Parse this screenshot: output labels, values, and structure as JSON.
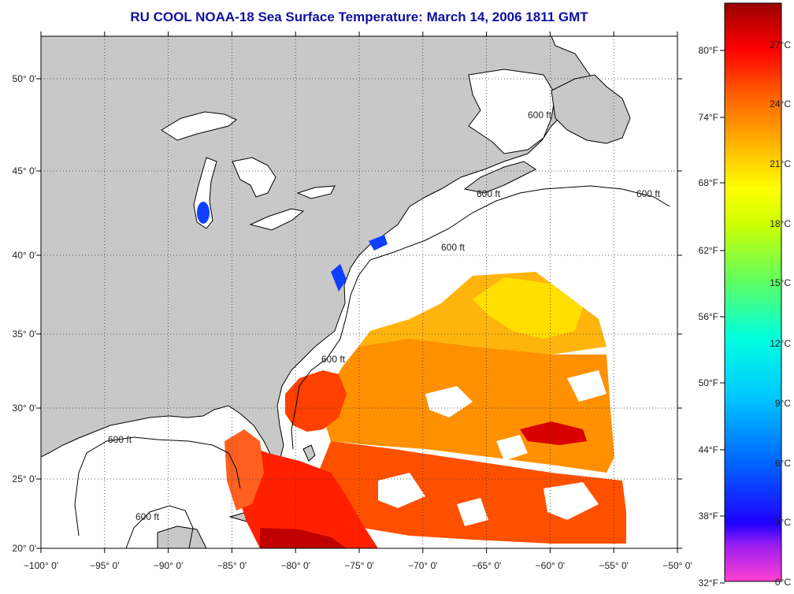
{
  "title": "RU COOL  NOAA-18  Sea Surface Temperature:  March 14, 2006 1811 GMT",
  "colors": {
    "title": "#1010a0",
    "land": "#c8c8c8",
    "ocean_no_data": "#ffffff",
    "coast": "#000000",
    "gridlines": "#333333"
  },
  "map": {
    "lon_range": [
      -100,
      -50
    ],
    "lat_range": [
      20,
      52.5
    ],
    "lon_ticks": [
      "−100° 0'",
      "−95° 0'",
      "−90° 0'",
      "−85° 0'",
      "−80° 0'",
      "−75° 0'",
      "−70° 0'",
      "−65° 0'",
      "−60° 0'",
      "−55° 0'",
      "−50° 0'"
    ],
    "lat_ticks": [
      "20° 0'",
      "25° 0'",
      "30° 0'",
      "35° 0'",
      "40° 0'",
      "45° 0'",
      "50° 0'"
    ],
    "isobath_labels": [
      "600 ft",
      "600 ft",
      "600 ft",
      "600 ft",
      "600 ft",
      "600 ft",
      "600 ft"
    ],
    "grid": "dotted"
  },
  "colorbar": {
    "fahrenheit_labels": [
      "80°F",
      "74°F",
      "68°F",
      "62°F",
      "56°F",
      "50°F",
      "44°F",
      "38°F",
      "32°F"
    ],
    "celsius_labels": [
      "27°C",
      "24°C",
      "21°C",
      "18°C",
      "15°C",
      "12°C",
      "9°C",
      "6°C",
      "3°C",
      "0°C"
    ],
    "range_celsius": [
      0,
      29
    ],
    "scale": [
      "#ff40d0",
      "#8000ff",
      "#0000ff",
      "#00a0ff",
      "#00ffff",
      "#40ff80",
      "#a0ff00",
      "#ffff00",
      "#ffc000",
      "#ff8000",
      "#ff0000",
      "#a00000"
    ]
  }
}
